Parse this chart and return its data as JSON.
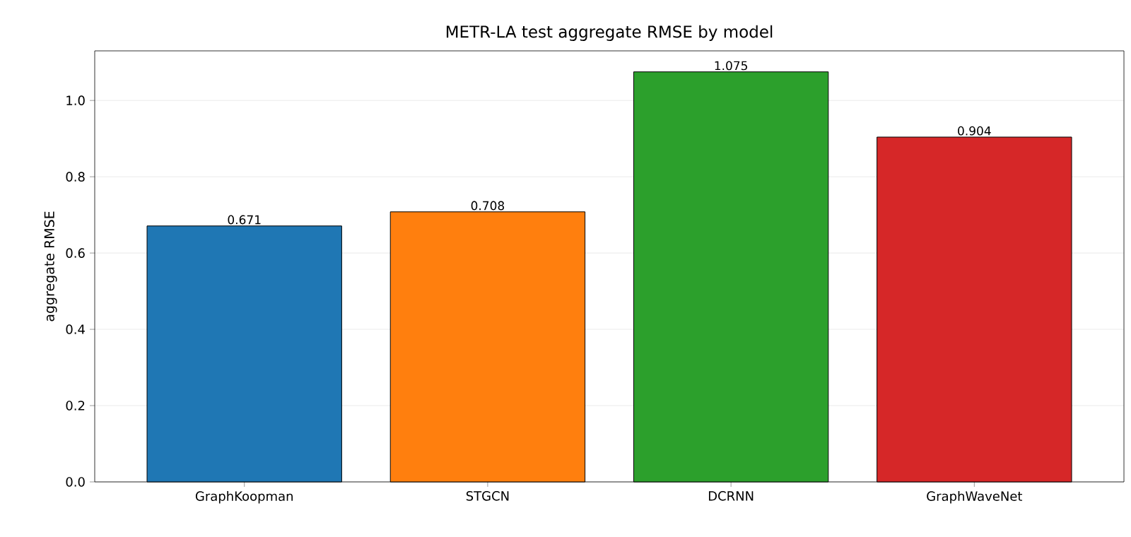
{
  "chart_data": {
    "type": "bar",
    "title": "METR-LA test aggregate RMSE by model",
    "ylabel": "aggregate RMSE",
    "categories": [
      "GraphKoopman",
      "STGCN",
      "DCRNN",
      "GraphWaveNet"
    ],
    "values": [
      0.671,
      0.708,
      1.075,
      0.904
    ],
    "colors": [
      "#1f77b4",
      "#ff7f0e",
      "#2ca02c",
      "#d62728"
    ],
    "ylim": [
      0,
      1.13
    ],
    "yticks": [
      {
        "value": 0,
        "label": "0.0"
      },
      0.2,
      0.4,
      0.6,
      0.8,
      {
        "value": 1,
        "label": "1.0"
      }
    ],
    "grid": "y",
    "data_labels": true
  }
}
